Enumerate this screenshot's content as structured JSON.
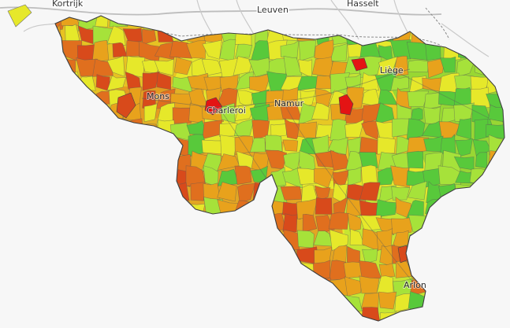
{
  "map": {
    "labels": {
      "kortrijk": "Kortrijk",
      "leuven": "Leuven",
      "hasselt": "Hasselt",
      "liege": "Liège",
      "mons": "Mons",
      "charleroi": "Charleroi",
      "namur": "Namur",
      "arlon": "Arlon"
    },
    "colors": {
      "background": "#f7f7f7",
      "green": "#58c93b",
      "light_green": "#a6e23a",
      "yellow": "#e6e82a",
      "amber": "#e8a21c",
      "orange": "#e06f1e",
      "red_orange": "#d84a1b",
      "red": "#e41414"
    }
  }
}
